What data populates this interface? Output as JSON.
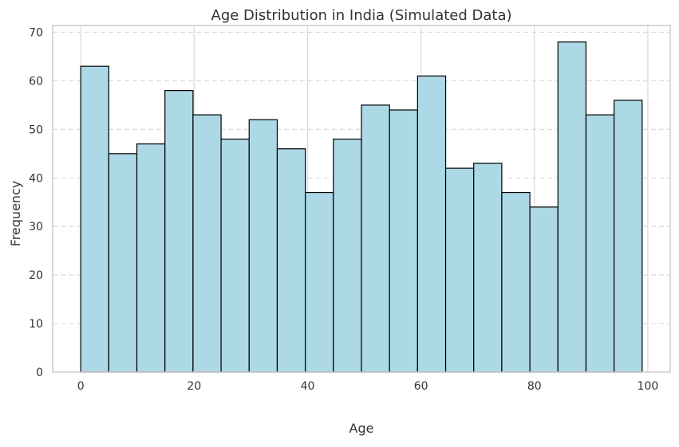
{
  "chart_data": {
    "type": "bar",
    "title": "Age Distribution in India (Simulated Data)",
    "xlabel": "Age",
    "ylabel": "Frequency",
    "bin_edges": [
      0,
      4.95,
      9.9,
      14.85,
      19.8,
      24.75,
      29.7,
      34.65,
      39.6,
      44.55,
      49.5,
      54.45,
      59.4,
      64.35,
      69.3,
      74.25,
      79.2,
      84.15,
      89.1,
      94.05,
      99
    ],
    "values": [
      63,
      45,
      47,
      58,
      53,
      48,
      52,
      46,
      37,
      48,
      55,
      54,
      61,
      42,
      43,
      37,
      34,
      68,
      53,
      56
    ],
    "xlim": [
      -4.95,
      103.95
    ],
    "ylim": [
      0,
      71.4
    ],
    "xticks": [
      0,
      20,
      40,
      60,
      80,
      100
    ],
    "yticks": [
      0,
      10,
      20,
      30,
      40,
      50,
      60,
      70
    ],
    "grid": true,
    "bar_color": "#add8e6",
    "edge_color": "#000000",
    "grid_color": "#d9d9d9",
    "spine_color": "#cccccc"
  }
}
